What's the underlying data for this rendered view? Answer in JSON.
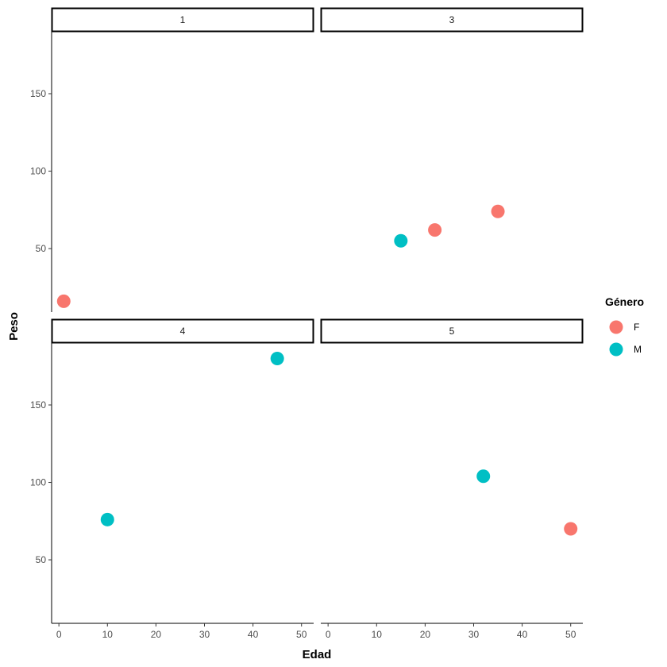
{
  "chart_data": {
    "type": "scatter",
    "facet_by": "Edad group",
    "xlabel": "Edad",
    "ylabel": "Peso",
    "xlim": [
      -1.5,
      52.5
    ],
    "ylim": [
      9,
      190
    ],
    "x_ticks": [
      0,
      10,
      20,
      30,
      40,
      50
    ],
    "y_ticks": [
      50,
      100,
      150
    ],
    "legend": {
      "title": "Género",
      "position": "right",
      "entries": [
        {
          "label": "F",
          "color": "#F8766D"
        },
        {
          "label": "M",
          "color": "#00BFC4"
        }
      ]
    },
    "panels": [
      {
        "strip": "1",
        "points": [
          {
            "x": 1,
            "y": 16,
            "group": "F"
          }
        ]
      },
      {
        "strip": "3",
        "points": [
          {
            "x": 15,
            "y": 55,
            "group": "M"
          },
          {
            "x": 22,
            "y": 62,
            "group": "F"
          },
          {
            "x": 35,
            "y": 74,
            "group": "F"
          }
        ]
      },
      {
        "strip": "4",
        "points": [
          {
            "x": 10,
            "y": 76,
            "group": "M"
          },
          {
            "x": 45,
            "y": 180,
            "group": "M"
          }
        ]
      },
      {
        "strip": "5",
        "points": [
          {
            "x": 32,
            "y": 104,
            "group": "M"
          },
          {
            "x": 50,
            "y": 70,
            "group": "F"
          }
        ]
      }
    ]
  }
}
